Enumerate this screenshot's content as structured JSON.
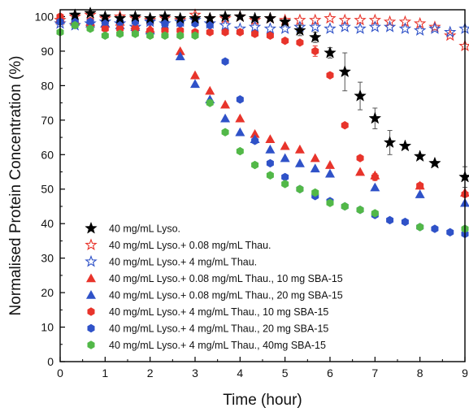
{
  "chart_data": {
    "type": "scatter",
    "xlabel": "Time (hour)",
    "ylabel": "Normalised Protein Concentration (%)",
    "xlim": [
      0,
      9
    ],
    "ylim": [
      0,
      102
    ],
    "xticks": [
      "0",
      "1",
      "2",
      "3",
      "4",
      "5",
      "6",
      "7",
      "8",
      "9"
    ],
    "yticks": [
      "0",
      "10",
      "20",
      "30",
      "40",
      "50",
      "60",
      "70",
      "80",
      "90",
      "100"
    ],
    "legend_position": "bottom-left",
    "series": [
      {
        "name": "40 mg/mL Lyso.",
        "marker": "star-filled",
        "color": "#000000",
        "x": [
          0.33,
          0.67,
          1,
          1.33,
          1.67,
          2,
          2.33,
          2.67,
          3,
          3.33,
          3.67,
          4,
          4.33,
          4.67,
          5,
          5.33,
          5.67,
          6,
          6.33,
          6.67,
          7,
          7.33,
          7.67,
          8,
          8.33,
          9
        ],
        "y": [
          100.5,
          101,
          100,
          99.5,
          100,
          99.5,
          100,
          99.5,
          99.5,
          99.5,
          100,
          100,
          99.5,
          99.5,
          98.5,
          96,
          94,
          89.5,
          84,
          77,
          70.5,
          63.5,
          62.5,
          59.5,
          57.5,
          53.5
        ],
        "yerr": [
          0,
          0,
          0,
          0,
          0,
          0,
          0,
          0,
          0,
          0,
          0,
          0,
          0,
          0,
          0,
          1.5,
          1.5,
          1.5,
          5.5,
          4,
          3,
          3.5,
          0.5,
          0.5,
          0.5,
          3
        ]
      },
      {
        "name": "40 mg/mL Lyso.+ 0.08 mg/mL Thau.",
        "marker": "star-open",
        "color": "#e8342b",
        "x": [
          0,
          0.33,
          0.67,
          1,
          1.33,
          1.67,
          2,
          2.33,
          2.67,
          3,
          3.33,
          3.67,
          4,
          4.33,
          4.67,
          5,
          5.33,
          5.67,
          6,
          6.33,
          6.67,
          7,
          7.33,
          7.67,
          8,
          8.33,
          8.67,
          9
        ],
        "y": [
          99,
          100,
          100.5,
          99.5,
          100,
          99.5,
          99,
          99.5,
          99,
          100.5,
          99.5,
          99.5,
          100,
          99,
          99.5,
          99,
          99,
          99,
          99.5,
          99,
          99,
          99,
          98.5,
          98.5,
          98,
          97,
          94.5,
          91.5
        ]
      },
      {
        "name": "40 mg/mL Lyso.+ 4 mg/mL Thau.",
        "marker": "star-open",
        "color": "#2f52c8",
        "x": [
          0,
          0.33,
          0.67,
          1,
          1.33,
          1.67,
          2,
          2.33,
          2.67,
          3,
          3.33,
          3.67,
          4,
          4.33,
          4.67,
          5,
          5.33,
          5.67,
          6,
          6.33,
          6.67,
          7,
          7.33,
          7.67,
          8,
          8.33,
          8.67,
          9
        ],
        "y": [
          98,
          97.5,
          98,
          98.5,
          98,
          97,
          98.5,
          98,
          98.5,
          99,
          98,
          97.5,
          96.5,
          97,
          96.5,
          96.5,
          97,
          97,
          96.5,
          97,
          96.5,
          97,
          97,
          96.5,
          96,
          96.5,
          95.5,
          96.5
        ]
      },
      {
        "name": "40 mg/mL Lyso.+ 0.08 mg/mL Thau., 10 mg SBA-15",
        "marker": "triangle",
        "color": "#e8342b",
        "x": [
          0,
          0.33,
          0.67,
          1,
          1.33,
          1.67,
          2,
          2.67,
          3,
          3.33,
          3.67,
          4,
          4.33,
          4.67,
          5,
          5.33,
          5.67,
          6,
          6.67,
          7,
          8,
          9
        ],
        "y": [
          99.5,
          99,
          98.5,
          98,
          98.5,
          97.5,
          96.5,
          90,
          83,
          78.5,
          74.5,
          70.5,
          66,
          64.5,
          62.5,
          61.5,
          59,
          57,
          55,
          54,
          51,
          49
        ]
      },
      {
        "name": "40 mg/mL Lyso.+ 0.08 mg/mL Thau., 20 mg SBA-15",
        "marker": "triangle",
        "color": "#2f52c8",
        "x": [
          0,
          0.33,
          0.67,
          1,
          1.33,
          1.67,
          2,
          2.67,
          3,
          3.33,
          3.67,
          4,
          4.33,
          4.67,
          5,
          5.33,
          5.67,
          6,
          7,
          8,
          9
        ],
        "y": [
          99,
          98.5,
          98,
          98,
          97.5,
          97,
          96,
          88.5,
          80.5,
          76,
          70.5,
          66.5,
          64.5,
          61.5,
          59,
          57.5,
          56,
          54.5,
          50.5,
          48.5,
          46
        ]
      },
      {
        "name": "40 mg/mL Lyso.+ 4 mg/mL Thau., 10 mg SBA-15",
        "marker": "hexagon",
        "color": "#e8342b",
        "x": [
          0,
          0.33,
          0.67,
          1,
          1.33,
          1.67,
          2,
          2.33,
          2.67,
          3,
          3.33,
          3.67,
          4,
          4.33,
          4.67,
          5,
          5.33,
          5.67,
          6,
          6.33,
          6.67,
          7,
          8,
          9
        ],
        "y": [
          100,
          98,
          97,
          96.5,
          96.5,
          96.5,
          96,
          96,
          96,
          95.5,
          95.5,
          95.5,
          95.5,
          95,
          94.5,
          93,
          92.5,
          90,
          83,
          68.5,
          59,
          53.5,
          51,
          48.5
        ],
        "yerr": [
          0,
          0,
          0,
          0,
          0,
          0,
          0,
          0,
          0,
          0,
          0,
          0,
          0,
          0,
          0,
          0,
          0,
          1.5,
          0,
          0,
          0,
          1,
          0,
          0
        ]
      },
      {
        "name": "40 mg/mL Lyso.+ 4 mg/mL Thau., 20 mg SBA-15",
        "marker": "hexagon",
        "color": "#2f52c8",
        "x": [
          0,
          0.33,
          0.67,
          1,
          1.33,
          1.67,
          2,
          2.33,
          2.67,
          3,
          3.33,
          3.67,
          4,
          4.33,
          4.67,
          5,
          5.33,
          5.67,
          6,
          6.33,
          6.67,
          7,
          7.33,
          7.67,
          8,
          8.33,
          8.67,
          9
        ],
        "y": [
          98.5,
          98.5,
          98.5,
          98.5,
          98.5,
          98.5,
          98.5,
          98,
          98,
          98,
          97.5,
          87,
          76,
          64,
          57.5,
          53.5,
          50,
          48,
          46.5,
          45,
          44,
          42.5,
          41,
          40.5,
          39,
          38.5,
          37.5,
          37
        ]
      },
      {
        "name": "40 mg/mL Lyso.+ 4 mg/mL Thau., 40mg SBA-15",
        "marker": "hexagon",
        "color": "#52b848",
        "x": [
          0,
          0.33,
          0.67,
          1,
          1.33,
          1.67,
          2,
          2.33,
          2.67,
          3,
          3.33,
          3.67,
          4,
          4.33,
          4.67,
          5,
          5.33,
          5.67,
          6,
          6.33,
          6.67,
          7,
          8,
          9
        ],
        "y": [
          95.5,
          97.5,
          96.5,
          94.5,
          95,
          95,
          94.5,
          94.5,
          94.5,
          94.5,
          75,
          66.5,
          61,
          57,
          54,
          51.5,
          50,
          49,
          46,
          45,
          44,
          43,
          39,
          38.5
        ]
      }
    ]
  }
}
